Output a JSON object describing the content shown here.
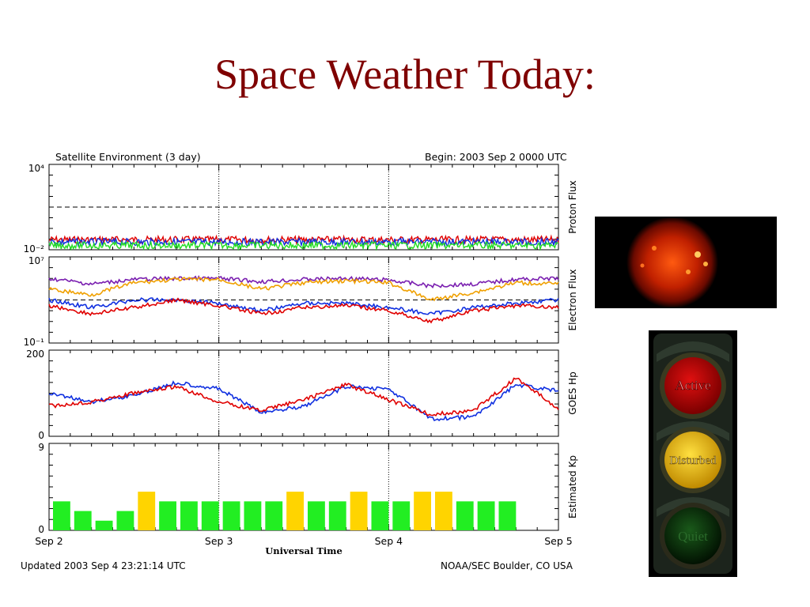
{
  "slide": {
    "title": "Space Weather Today:"
  },
  "chart_meta": {
    "title_left": "Satellite Environment (3 day)",
    "title_right": "Begin:  2003 Sep 2 0000 UTC",
    "footer_left": "Updated 2003 Sep  4 23:21:14 UTC",
    "footer_right": "NOAA/SEC Boulder, CO USA"
  },
  "chart_data": [
    {
      "type": "line",
      "ylabel": "Proton Flux",
      "scale": "log",
      "ylim": [
        0.01,
        10000
      ],
      "ytick_labels": [
        "10⁴",
        "10⁻²"
      ],
      "threshold": 10,
      "series": [
        {
          "color": "#e00000",
          "approx_value": 0.05
        },
        {
          "color": "#1030e0",
          "approx_value": 0.035
        },
        {
          "color": "#22dd22",
          "approx_value": 0.02
        }
      ]
    },
    {
      "type": "line",
      "ylabel": "Electron Flux",
      "scale": "log",
      "ylim": [
        0.1,
        10000000
      ],
      "ytick_labels": [
        "10⁷",
        "10⁻¹"
      ],
      "threshold": 1000,
      "x": [
        0,
        0.25,
        0.5,
        0.75,
        1,
        1.25,
        1.5,
        1.75,
        2,
        2.25,
        2.5,
        2.75,
        3
      ],
      "series": [
        {
          "color": "#7a1fb0",
          "values": [
            100000,
            30000,
            80000,
            100000,
            100000,
            50000,
            80000,
            100000,
            70000,
            20000,
            30000,
            80000,
            100000
          ]
        },
        {
          "color": "#f0a000",
          "values": [
            10000,
            3000,
            40000,
            80000,
            80000,
            10000,
            40000,
            60000,
            40000,
            1000,
            5000,
            40000,
            30000
          ]
        },
        {
          "color": "#1030e0",
          "values": [
            1000,
            200,
            1000,
            1000,
            500,
            100,
            500,
            500,
            200,
            50,
            200,
            500,
            1000
          ]
        },
        {
          "color": "#e00000",
          "values": [
            300,
            50,
            200,
            1000,
            300,
            50,
            200,
            300,
            100,
            10,
            100,
            300,
            200
          ]
        }
      ]
    },
    {
      "type": "line",
      "ylabel": "GOES Hp",
      "ylim": [
        0,
        200
      ],
      "ytick_labels": [
        "200",
        "0"
      ],
      "x": [
        0,
        0.25,
        0.5,
        0.75,
        1,
        1.25,
        1.5,
        1.75,
        2,
        2.25,
        2.5,
        2.75,
        3
      ],
      "series": [
        {
          "color": "#1030e0",
          "values": [
            100,
            80,
            95,
            125,
            110,
            55,
            70,
            115,
            110,
            40,
            45,
            120,
            105
          ]
        },
        {
          "color": "#e00000",
          "values": [
            70,
            80,
            100,
            115,
            80,
            60,
            85,
            120,
            85,
            50,
            60,
            135,
            65
          ]
        }
      ]
    },
    {
      "type": "bar",
      "ylabel": "Estimated Kp",
      "ylim": [
        0,
        9
      ],
      "ytick_labels": [
        "9",
        "0"
      ],
      "values": [
        3,
        2,
        1,
        2,
        4,
        3,
        3,
        3,
        3,
        3,
        3,
        4,
        3,
        3,
        4,
        3,
        3,
        4,
        4,
        3,
        3,
        3
      ],
      "colors": [
        "#22ee22",
        "#22ee22",
        "#22ee22",
        "#22ee22",
        "#ffd400",
        "#22ee22",
        "#22ee22",
        "#22ee22",
        "#22ee22",
        "#22ee22",
        "#22ee22",
        "#ffd400",
        "#22ee22",
        "#22ee22",
        "#ffd400",
        "#22ee22",
        "#22ee22",
        "#ffd400",
        "#ffd400",
        "#22ee22",
        "#22ee22",
        "#22ee22"
      ],
      "xtick_labels": [
        "Sep 2",
        "Sep 3",
        "Sep 4",
        "Sep 5"
      ],
      "xlabel": "Universal Time"
    }
  ],
  "sun": {
    "color": "#c02000"
  },
  "traffic_light": {
    "labels": [
      "Active",
      "Disturbed",
      "Quiet"
    ],
    "active_color": "#b80000",
    "disturbed_color": "#f0c000",
    "quiet_color": "#0a3a0a"
  }
}
